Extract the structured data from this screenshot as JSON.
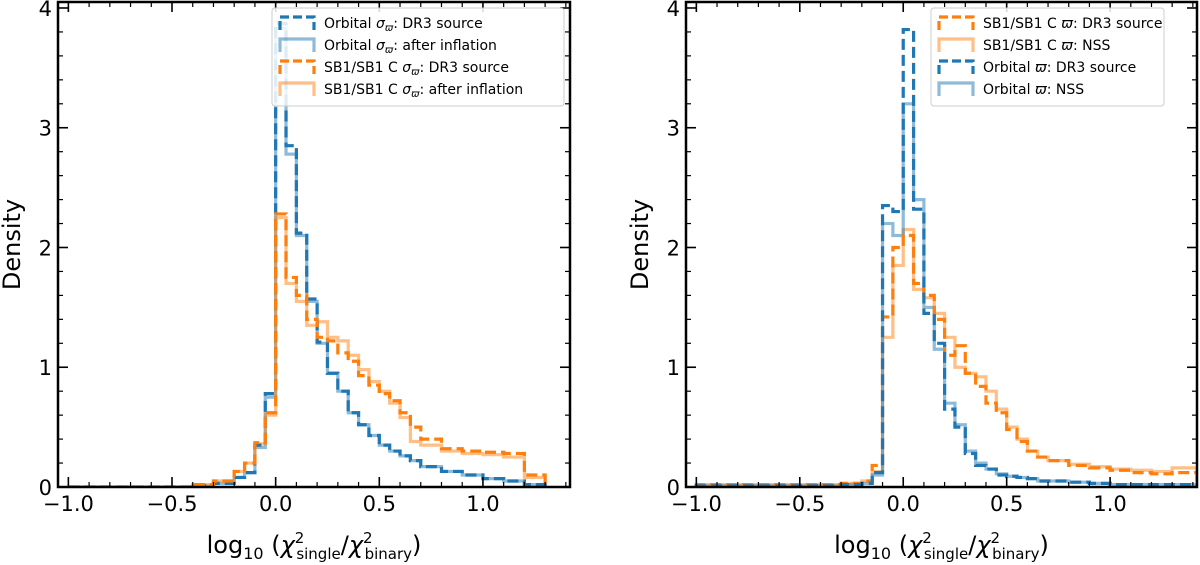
{
  "chart_data": [
    {
      "type": "histogram",
      "panel": "left",
      "xlabel": {
        "prefix": "log",
        "base": "10",
        "sym": "χ",
        "sup": "2",
        "num": "single",
        "den": "binary"
      },
      "ylabel": "Density",
      "xlim": [
        -1.05,
        1.42
      ],
      "ylim": [
        0,
        4.05
      ],
      "xticks": [
        -1.0,
        -0.5,
        0.0,
        0.5,
        1.0
      ],
      "xtick_labels": [
        "−1.0",
        "−0.5",
        "0.0",
        "0.5",
        "1.0"
      ],
      "yticks": [
        0,
        1,
        2,
        3,
        4
      ],
      "ytick_labels": [
        "0",
        "1",
        "2",
        "3",
        "4"
      ],
      "legend_position": "top-right",
      "series": [
        {
          "name": "Orbital σϖ: DR3 source",
          "label_main": "Orbital ",
          "label_sym": "σ",
          "label_sub": "ϖ",
          "label_tail": ": DR3 source",
          "color": "#1f77b4",
          "style": "dashed",
          "alpha": 1.0,
          "edges": [
            -1.0,
            -0.4,
            -0.3,
            -0.2,
            -0.15,
            -0.1,
            -0.05,
            0.0,
            0.05,
            0.1,
            0.15,
            0.2,
            0.25,
            0.3,
            0.35,
            0.4,
            0.45,
            0.5,
            0.55,
            0.6,
            0.65,
            0.7,
            0.8,
            0.9,
            1.0,
            1.1,
            1.2,
            1.3
          ],
          "values": [
            0.0,
            0.01,
            0.03,
            0.08,
            0.12,
            0.35,
            0.78,
            3.87,
            2.85,
            2.12,
            1.57,
            1.21,
            0.95,
            0.8,
            0.62,
            0.52,
            0.43,
            0.35,
            0.3,
            0.26,
            0.22,
            0.17,
            0.13,
            0.1,
            0.07,
            0.05,
            0.02
          ]
        },
        {
          "name": "Orbital σϖ: after inflation",
          "label_main": "Orbital ",
          "label_sym": "σ",
          "label_sub": "ϖ",
          "label_tail": ": after inflation",
          "color": "#1f77b4",
          "style": "solid",
          "alpha": 0.5,
          "edges": [
            -1.0,
            -0.4,
            -0.3,
            -0.2,
            -0.15,
            -0.1,
            -0.05,
            0.0,
            0.05,
            0.1,
            0.15,
            0.2,
            0.25,
            0.3,
            0.35,
            0.4,
            0.45,
            0.5,
            0.55,
            0.6,
            0.65,
            0.7,
            0.8,
            0.9,
            1.0,
            1.1,
            1.2,
            1.3
          ],
          "values": [
            0.0,
            0.01,
            0.03,
            0.08,
            0.12,
            0.33,
            0.75,
            3.83,
            2.78,
            2.1,
            1.55,
            1.2,
            0.95,
            0.8,
            0.62,
            0.52,
            0.43,
            0.35,
            0.3,
            0.26,
            0.22,
            0.17,
            0.13,
            0.1,
            0.07,
            0.05,
            0.02
          ]
        },
        {
          "name": "SB1/SB1 C σϖ: DR3 source",
          "label_main": "SB1/SB1 C ",
          "label_sym": "σ",
          "label_sub": "ϖ",
          "label_tail": ": DR3 source",
          "color": "#ff7f0e",
          "style": "dashed",
          "alpha": 1.0,
          "edges": [
            -1.0,
            -0.4,
            -0.3,
            -0.2,
            -0.15,
            -0.1,
            -0.05,
            0.0,
            0.05,
            0.1,
            0.15,
            0.2,
            0.25,
            0.3,
            0.35,
            0.4,
            0.45,
            0.5,
            0.55,
            0.6,
            0.65,
            0.7,
            0.8,
            0.9,
            1.0,
            1.1,
            1.2,
            1.3
          ],
          "values": [
            0.0,
            0.02,
            0.05,
            0.13,
            0.2,
            0.37,
            0.62,
            2.28,
            1.75,
            1.6,
            1.4,
            1.25,
            1.22,
            1.12,
            1.05,
            0.93,
            0.85,
            0.78,
            0.72,
            0.62,
            0.5,
            0.4,
            0.32,
            0.3,
            0.29,
            0.28,
            0.1
          ]
        },
        {
          "name": "SB1/SB1 C σϖ: after inflation",
          "label_main": "SB1/SB1 C ",
          "label_sym": "σ",
          "label_sub": "ϖ",
          "label_tail": ": after inflation",
          "color": "#ff7f0e",
          "style": "solid",
          "alpha": 0.5,
          "edges": [
            -1.0,
            -0.4,
            -0.3,
            -0.2,
            -0.15,
            -0.1,
            -0.05,
            0.0,
            0.05,
            0.1,
            0.15,
            0.2,
            0.25,
            0.3,
            0.35,
            0.4,
            0.45,
            0.5,
            0.55,
            0.6,
            0.65,
            0.7,
            0.8,
            0.9,
            1.0,
            1.1,
            1.2,
            1.3
          ],
          "values": [
            0.0,
            0.02,
            0.05,
            0.13,
            0.2,
            0.36,
            0.6,
            2.25,
            1.7,
            1.55,
            1.35,
            1.38,
            1.25,
            1.22,
            1.1,
            0.98,
            0.88,
            0.8,
            0.7,
            0.58,
            0.38,
            0.35,
            0.3,
            0.28,
            0.27,
            0.25,
            0.08
          ]
        }
      ]
    },
    {
      "type": "histogram",
      "panel": "right",
      "xlabel": {
        "prefix": "log",
        "base": "10",
        "sym": "χ",
        "sup": "2",
        "num": "single",
        "den": "binary"
      },
      "ylabel": "Density",
      "xlim": [
        -1.05,
        1.42
      ],
      "ylim": [
        0,
        4.05
      ],
      "xticks": [
        -1.0,
        -0.5,
        0.0,
        0.5,
        1.0
      ],
      "xtick_labels": [
        "−1.0",
        "−0.5",
        "0.0",
        "0.5",
        "1.0"
      ],
      "yticks": [
        0,
        1,
        2,
        3,
        4
      ],
      "ytick_labels": [
        "0",
        "1",
        "2",
        "3",
        "4"
      ],
      "legend_position": "top-right",
      "series": [
        {
          "name": "SB1/SB1 C ϖ: DR3 source",
          "label_main": "SB1/SB1 C ",
          "label_sym": "ϖ",
          "label_sub": "",
          "label_tail": ": DR3 source",
          "color": "#ff7f0e",
          "style": "dashed",
          "alpha": 1.0,
          "edges": [
            -1.0,
            -0.3,
            -0.2,
            -0.15,
            -0.1,
            -0.05,
            0.0,
            0.05,
            0.1,
            0.15,
            0.2,
            0.25,
            0.3,
            0.35,
            0.4,
            0.45,
            0.5,
            0.55,
            0.6,
            0.65,
            0.7,
            0.8,
            0.9,
            1.0,
            1.1,
            1.2,
            1.3,
            1.42
          ],
          "values": [
            0.02,
            0.03,
            0.05,
            0.18,
            1.42,
            2.0,
            2.1,
            1.7,
            1.6,
            1.4,
            1.1,
            1.18,
            0.95,
            0.84,
            0.7,
            0.62,
            0.48,
            0.38,
            0.3,
            0.25,
            0.22,
            0.18,
            0.16,
            0.14,
            0.12,
            0.11,
            0.12
          ]
        },
        {
          "name": "SB1/SB1 C ϖ: NSS",
          "label_main": "SB1/SB1 C ",
          "label_sym": "ϖ",
          "label_sub": "",
          "label_tail": ": NSS",
          "color": "#ff7f0e",
          "style": "solid",
          "alpha": 0.5,
          "edges": [
            -1.0,
            -0.3,
            -0.2,
            -0.15,
            -0.1,
            -0.05,
            0.0,
            0.05,
            0.1,
            0.15,
            0.2,
            0.25,
            0.3,
            0.35,
            0.4,
            0.45,
            0.5,
            0.55,
            0.6,
            0.65,
            0.7,
            0.8,
            0.9,
            1.0,
            1.1,
            1.2,
            1.3,
            1.42
          ],
          "values": [
            0.02,
            0.03,
            0.05,
            0.13,
            1.25,
            1.85,
            2.15,
            1.65,
            1.58,
            1.45,
            1.25,
            1.0,
            0.95,
            0.92,
            0.8,
            0.65,
            0.5,
            0.4,
            0.3,
            0.25,
            0.22,
            0.19,
            0.17,
            0.15,
            0.14,
            0.13,
            0.16
          ]
        },
        {
          "name": "Orbital ϖ: DR3 source",
          "label_main": "Orbital ",
          "label_sym": "ϖ",
          "label_sub": "",
          "label_tail": ": DR3 source",
          "color": "#1f77b4",
          "style": "dashed",
          "alpha": 1.0,
          "edges": [
            -1.0,
            -0.3,
            -0.2,
            -0.15,
            -0.1,
            -0.05,
            0.0,
            0.05,
            0.1,
            0.15,
            0.2,
            0.25,
            0.3,
            0.35,
            0.4,
            0.45,
            0.5,
            0.55,
            0.6,
            0.65,
            0.7,
            0.8,
            0.9,
            1.0,
            1.1,
            1.2,
            1.3,
            1.42
          ],
          "values": [
            0.01,
            0.02,
            0.03,
            0.12,
            2.35,
            2.3,
            3.82,
            2.32,
            1.45,
            1.2,
            0.65,
            0.5,
            0.28,
            0.18,
            0.15,
            0.1,
            0.09,
            0.08,
            0.07,
            0.05,
            0.05,
            0.04,
            0.03,
            0.02,
            0.02,
            0.02,
            0.02
          ]
        },
        {
          "name": "Orbital ϖ: NSS",
          "label_main": "Orbital ",
          "label_sym": "ϖ",
          "label_sub": "",
          "label_tail": ": NSS",
          "color": "#1f77b4",
          "style": "solid",
          "alpha": 0.5,
          "edges": [
            -1.0,
            -0.3,
            -0.2,
            -0.15,
            -0.1,
            -0.05,
            0.0,
            0.05,
            0.1,
            0.15,
            0.2,
            0.25,
            0.3,
            0.35,
            0.4,
            0.45,
            0.5,
            0.55,
            0.6,
            0.65,
            0.7,
            0.8,
            0.9,
            1.0,
            1.1,
            1.2,
            1.3,
            1.42
          ],
          "values": [
            0.01,
            0.02,
            0.03,
            0.1,
            2.2,
            2.1,
            3.2,
            2.4,
            1.5,
            1.15,
            0.7,
            0.52,
            0.3,
            0.2,
            0.15,
            0.11,
            0.09,
            0.08,
            0.07,
            0.05,
            0.05,
            0.04,
            0.03,
            0.02,
            0.02,
            0.02,
            0.02
          ]
        }
      ]
    }
  ]
}
